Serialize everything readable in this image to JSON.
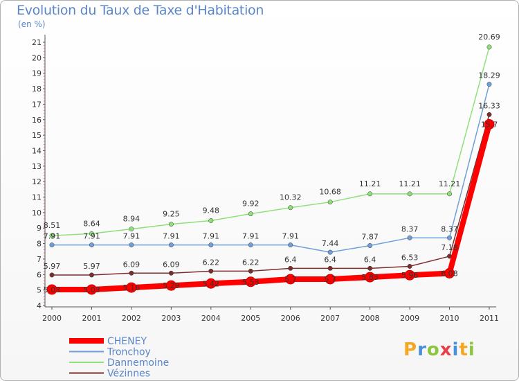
{
  "header": {
    "title": "Evolution du Taux de Taxe d'Habitation",
    "unit": "(en %)"
  },
  "logo": {
    "letters": [
      "P",
      "r",
      "o",
      "x",
      "i",
      "t",
      "i"
    ],
    "colors": [
      "#f5a623",
      "#4a90d9",
      "#8cc63f",
      "#e8404a",
      "#4a90d9",
      "#f5a623",
      "#8cc63f"
    ]
  },
  "chart_data": {
    "type": "line",
    "title": "Evolution du Taux de Taxe d'Habitation",
    "ylabel": "(en %)",
    "xlabel": "",
    "x": [
      "2000",
      "2001",
      "2002",
      "2003",
      "2004",
      "2005",
      "2006",
      "2007",
      "2008",
      "2009",
      "2010",
      "2011"
    ],
    "ylim": [
      4,
      21
    ],
    "yticks": [
      "4",
      "5",
      "6",
      "7",
      "8",
      "9",
      "10",
      "11",
      "12",
      "13",
      "14",
      "15",
      "16",
      "17",
      "18",
      "19",
      "20",
      "21"
    ],
    "grid": false,
    "legend": "bottom-left",
    "series": [
      {
        "name": "CHENEY",
        "color": "#ff0000",
        "values": [
          5.03,
          5.03,
          5.16,
          5.29,
          5.42,
          5.53,
          5.7,
          5.7,
          5.83,
          5.96,
          6.08,
          15.7
        ],
        "labels": [
          "5.03",
          "5.03",
          "5.16",
          "5.29",
          "5.42",
          "5.53",
          "5.7",
          "5.7",
          "5.83",
          "5.96",
          "6.08",
          "15.7"
        ]
      },
      {
        "name": "Tronchoy",
        "color": "#6f9fd6",
        "values": [
          7.91,
          7.91,
          7.91,
          7.91,
          7.91,
          7.91,
          7.91,
          7.44,
          7.87,
          8.37,
          8.37,
          18.29
        ],
        "labels": [
          "7.91",
          "7.91",
          "7.91",
          "7.91",
          "7.91",
          "7.91",
          "7.91",
          "7.44",
          "7.87",
          "8.37",
          "8.37",
          "18.29"
        ]
      },
      {
        "name": "Dannemoine",
        "color": "#8fe07a",
        "values": [
          8.51,
          8.64,
          8.94,
          9.25,
          9.48,
          9.92,
          10.32,
          10.68,
          11.21,
          11.21,
          11.21,
          20.69
        ],
        "labels": [
          "8.51",
          "8.64",
          "8.94",
          "9.25",
          "9.48",
          "9.92",
          "10.32",
          "10.68",
          "11.21",
          "11.21",
          "11.21",
          "20.69"
        ]
      },
      {
        "name": "Vézinnes",
        "color": "#7a2e2e",
        "values": [
          5.97,
          5.97,
          6.09,
          6.09,
          6.22,
          6.22,
          6.4,
          6.4,
          6.4,
          6.53,
          7.18,
          16.33
        ],
        "labels": [
          "5.97",
          "5.97",
          "6.09",
          "6.09",
          "6.22",
          "6.22",
          "6.4",
          "6.4",
          "6.4",
          "6.53",
          "7.18",
          "16.33"
        ]
      }
    ]
  }
}
